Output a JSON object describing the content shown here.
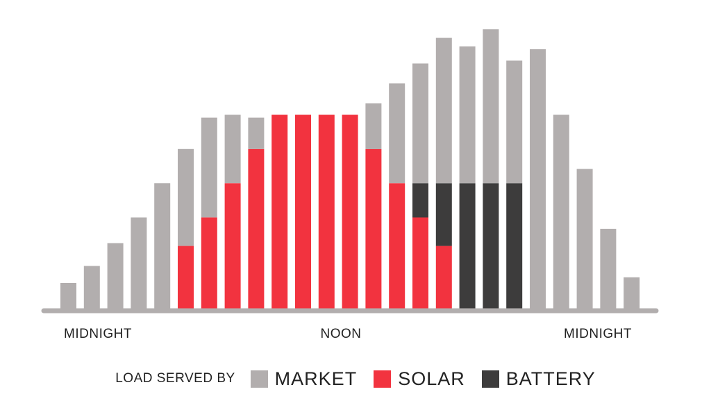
{
  "colors": {
    "market": "#b2aeae",
    "solar": "#f2333f",
    "battery": "#3d3c3c",
    "axis": "#b2aeae",
    "text": "#222222"
  },
  "legend": {
    "title": "LOAD SERVED BY",
    "items": [
      {
        "label": "MARKET",
        "color": "#b2aeae"
      },
      {
        "label": "SOLAR",
        "color": "#f2333f"
      },
      {
        "label": "BATTERY",
        "color": "#3d3c3c"
      }
    ]
  },
  "chart_data": {
    "type": "bar",
    "stacked": true,
    "title": "",
    "xlabel": "",
    "ylabel": "",
    "x_tick_labels": [
      "MIDNIGHT",
      "NOON",
      "MIDNIGHT"
    ],
    "ylim": [
      0,
      10
    ],
    "grid": false,
    "legend_position": "bottom",
    "series": [
      {
        "name": "SOLAR",
        "values": [
          0,
          0,
          0,
          0,
          0,
          2.2,
          3.2,
          4.4,
          5.6,
          6.8,
          6.8,
          6.8,
          6.8,
          5.6,
          4.4,
          3.2,
          2.2,
          0,
          0,
          0,
          0,
          0,
          0,
          0,
          0
        ]
      },
      {
        "name": "BATTERY",
        "values": [
          0,
          0,
          0,
          0,
          0,
          0,
          0,
          0,
          0,
          0,
          0,
          0,
          0,
          0,
          0,
          1.2,
          2.2,
          4.4,
          4.4,
          4.4,
          0,
          0,
          0,
          0,
          0
        ]
      },
      {
        "name": "MARKET",
        "values": [
          0.9,
          1.5,
          2.3,
          3.2,
          4.4,
          3.4,
          3.5,
          2.4,
          1.1,
          0,
          0,
          0,
          0,
          1.6,
          3.5,
          4.2,
          5.1,
          4.8,
          5.4,
          4.3,
          9.1,
          6.8,
          4.9,
          2.8,
          1.1
        ]
      }
    ]
  }
}
